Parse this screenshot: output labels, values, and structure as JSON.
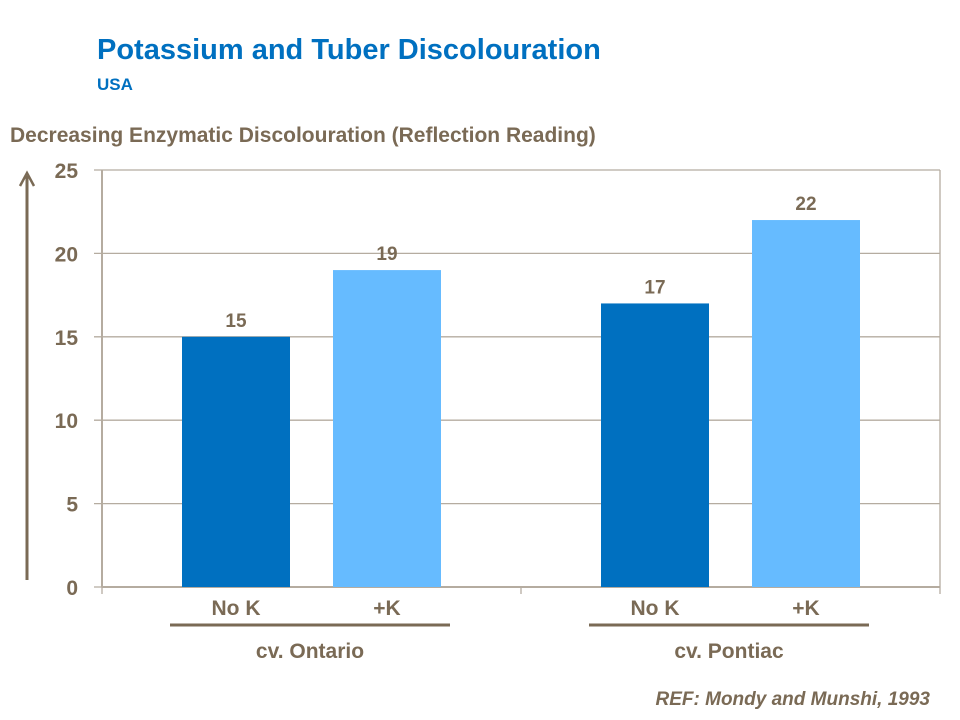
{
  "chart_data": {
    "type": "bar",
    "title": "Potassium and Tuber Discolouration",
    "subtitle": "USA",
    "ylabel": "Decreasing Enzymatic Discolouration (Reflection Reading)",
    "xlabel": "",
    "ylim": [
      0,
      25
    ],
    "yticks": [
      0,
      5,
      10,
      15,
      20,
      25
    ],
    "grid": true,
    "groups": [
      {
        "label": "cv. Ontario",
        "categories": [
          "No K",
          "+K"
        ],
        "values": [
          15,
          19
        ]
      },
      {
        "label": "cv. Pontiac",
        "categories": [
          "No K",
          "+K"
        ],
        "values": [
          17,
          22
        ]
      }
    ],
    "colors": {
      "No K": "#0070C0",
      "+K": "#66BBFF",
      "text": "#7a6a55",
      "grid": "#b5aca0"
    },
    "reference": "REF: Mondy and Munshi, 1993"
  }
}
